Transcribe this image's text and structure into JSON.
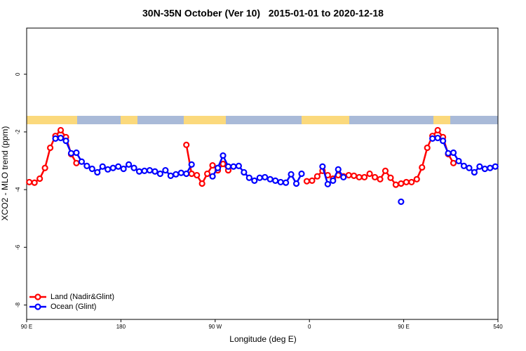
{
  "chart_data": {
    "type": "line",
    "title": "30N-35N October (Ver 10)   2015-01-01 to 2020-12-18",
    "xlabel": "Longitude (deg E)",
    "ylabel": "XCO2 - MLO trend (ppm)",
    "x": [
      92.5,
      97.5,
      102.5,
      107.5,
      112.5,
      117.5,
      122.5,
      127.5,
      132.5,
      137.5,
      142.5,
      147.5,
      152.5,
      157.5,
      162.5,
      167.5,
      172.5,
      177.5,
      182.5,
      187.5,
      192.5,
      197.5,
      202.5,
      207.5,
      212.5,
      217.5,
      222.5,
      227.5,
      232.5,
      237.5,
      242.5,
      247.5,
      252.5,
      257.5,
      262.5,
      267.5,
      272.5,
      277.5,
      282.5,
      287.5,
      292.5,
      297.5,
      302.5,
      307.5,
      312.5,
      317.5,
      322.5,
      327.5,
      332.5,
      337.5,
      342.5,
      347.5,
      352.5,
      357.5,
      362.5,
      367.5,
      372.5,
      377.5,
      382.5,
      387.5,
      392.5,
      397.5,
      402.5,
      407.5,
      412.5,
      417.5,
      422.5,
      427.5,
      432.5,
      437.5,
      442.5,
      447.5,
      452.5,
      457.5,
      462.5,
      467.5,
      472.5,
      477.5,
      482.5,
      487.5,
      492.5,
      497.5,
      502.5,
      507.5,
      512.5,
      517.5,
      522.5,
      527.5,
      532.5,
      537.5
    ],
    "series": [
      {
        "name": "Land (Nadir&Glint)",
        "color": "#ff0000",
        "values": [
          -3.74,
          -3.76,
          -3.62,
          -3.25,
          -2.55,
          -2.14,
          -1.94,
          -2.18,
          -2.77,
          -3.08,
          null,
          null,
          null,
          null,
          null,
          null,
          null,
          null,
          null,
          null,
          null,
          null,
          null,
          null,
          null,
          null,
          null,
          null,
          null,
          null,
          -2.45,
          -3.45,
          -3.5,
          -3.79,
          -3.45,
          -3.16,
          -3.33,
          -3.11,
          -3.33,
          null,
          null,
          null,
          null,
          null,
          null,
          null,
          null,
          null,
          null,
          null,
          null,
          null,
          null,
          -3.71,
          -3.69,
          -3.54,
          -3.35,
          -3.5,
          -3.62,
          -3.5,
          -3.54,
          -3.5,
          -3.52,
          -3.57,
          -3.57,
          -3.45,
          -3.57,
          -3.64,
          -3.35,
          -3.59,
          -3.83,
          -3.79,
          -3.74,
          -3.74,
          -3.64,
          -3.23,
          -2.55,
          -2.14,
          -1.94,
          -2.18,
          -2.77,
          -3.08,
          null,
          null,
          null,
          null,
          null,
          null,
          null,
          null
        ]
      },
      {
        "name": "Ocean (Glint)",
        "color": "#0000ff",
        "values": [
          null,
          null,
          null,
          null,
          null,
          -2.23,
          -2.21,
          -2.31,
          -2.74,
          -2.72,
          -3.03,
          -3.18,
          -3.28,
          -3.4,
          -3.2,
          -3.3,
          -3.25,
          -3.2,
          -3.28,
          -3.13,
          -3.25,
          -3.37,
          -3.35,
          -3.33,
          -3.37,
          -3.45,
          -3.33,
          -3.52,
          -3.47,
          -3.42,
          -3.45,
          -3.13,
          null,
          null,
          null,
          -3.54,
          -3.25,
          -2.82,
          -3.2,
          -3.2,
          -3.18,
          -3.4,
          -3.59,
          -3.69,
          -3.59,
          -3.57,
          -3.64,
          -3.69,
          -3.74,
          -3.76,
          -3.47,
          -3.79,
          -3.45,
          null,
          null,
          null,
          -3.2,
          -3.81,
          -3.69,
          -3.3,
          -3.57,
          null,
          null,
          null,
          null,
          null,
          null,
          null,
          null,
          null,
          null,
          -4.42,
          null,
          null,
          null,
          null,
          null,
          -2.23,
          -2.21,
          -2.31,
          -2.74,
          -2.72,
          -3.01,
          -3.18,
          -3.25,
          -3.4,
          -3.2,
          -3.28,
          -3.25,
          -3.2
        ]
      }
    ],
    "xlim": [
      90,
      540
    ],
    "xticks": [
      {
        "value": 90,
        "label": "90 E"
      },
      180,
      {
        "value": 270,
        "label": "90 W"
      },
      {
        "value": 360,
        "label": "0"
      },
      {
        "value": 450,
        "label": "90 E"
      },
      540
    ],
    "ylim": [
      -8.5,
      1.6
    ],
    "yticks": [
      0,
      -2,
      -4,
      -6,
      -8
    ],
    "legend": "bottomleft"
  }
}
